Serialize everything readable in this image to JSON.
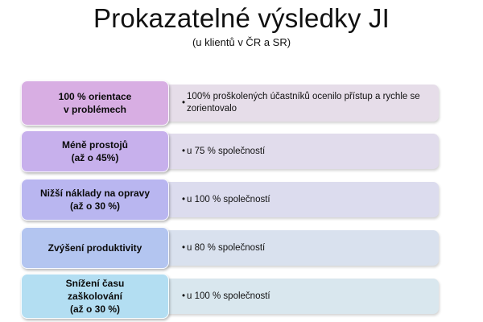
{
  "title": "Prokazatelné výsledky JI",
  "subtitle": "(u klientů v ČR a SR)",
  "rows": [
    {
      "label": "100 % orientace\nv problémech",
      "bullet": "•",
      "text": "100% proškolených účastníků ocenilo přístup a rychle se zorientovalo",
      "label_color": "#d8aee3",
      "desc_color": "#e6dde9"
    },
    {
      "label": "Méně prostojů\n(až o 45%)",
      "bullet": "•",
      "text": "u 75 % společností",
      "label_color": "#c7b0ec",
      "desc_color": "#e1dcec"
    },
    {
      "label": "Nižší náklady na opravy\n(až o 30 %)",
      "bullet": "•",
      "text": "u 100 % společností",
      "label_color": "#b9b6f0",
      "desc_color": "#dcdcee"
    },
    {
      "label": "Zvýšení produktivity",
      "bullet": "•",
      "text": "u 80 % společností",
      "label_color": "#b3c5f0",
      "desc_color": "#d9e1ee"
    },
    {
      "label": "Snížení času\nzaškolování\n(až o 30 %)",
      "bullet": "•",
      "text": "u 100 % společností",
      "label_color": "#b3def2",
      "desc_color": "#d9e7ee"
    }
  ]
}
